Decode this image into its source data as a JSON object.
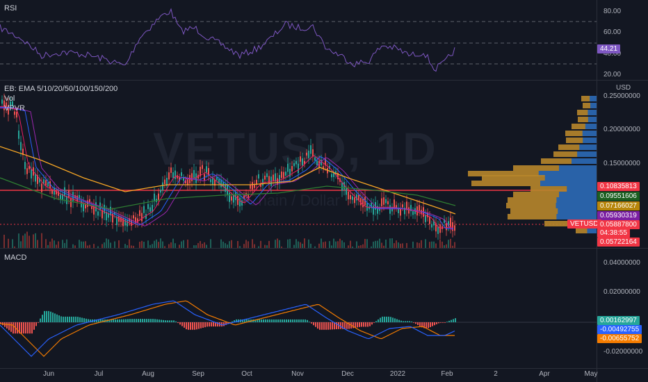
{
  "rsi": {
    "title": "RSI",
    "value": "44.21",
    "ticks": [
      "80.00",
      "60.00",
      "40.00",
      "20.00"
    ]
  },
  "main": {
    "title": "EB: EMA 5/10/20/50/100/150/200",
    "vol": "Vol",
    "vpvr": "VPVR",
    "currency": "USD",
    "watermark": "VETUSD, 1D",
    "watermark_sub": "VeChain / Dollar",
    "ticks": [
      "0.25000000",
      "0.20000000",
      "0.15000000"
    ],
    "price_tags": [
      {
        "text": "0.10835813",
        "color": "#f23645"
      },
      {
        "text": "0.09551606",
        "color": "#1b5e20"
      },
      {
        "text": "0.07166027",
        "color": "#b8860b"
      },
      {
        "text": "0.05930319",
        "color": "#7b1fa2"
      },
      {
        "text": "0.05887800",
        "color": "#f23645"
      },
      {
        "text": "04:38:55",
        "color": "#f23645"
      },
      {
        "text": "0.05722164",
        "color": "#f23645"
      }
    ],
    "symbol_tag": "VETUSD"
  },
  "macd": {
    "title": "MACD",
    "ticks": [
      "0.04000000",
      "0.02000000",
      "-0.02000000"
    ],
    "tags": [
      {
        "text": "0.00162997",
        "color": "#26a69a"
      },
      {
        "text": "-0.00492755",
        "color": "#2962ff"
      },
      {
        "text": "-0.00655752",
        "color": "#f57c00"
      }
    ]
  },
  "xaxis": [
    "Jun",
    "Jul",
    "Aug",
    "Sep",
    "Oct",
    "Nov",
    "Dec",
    "2022",
    "Feb",
    "2",
    "Apr",
    "May"
  ],
  "colors": {
    "bg": "#131722",
    "up": "#26a69a",
    "down": "#ef5350",
    "rsi": "#7e57c2",
    "macd": "#2962ff",
    "signal": "#f57c00"
  }
}
